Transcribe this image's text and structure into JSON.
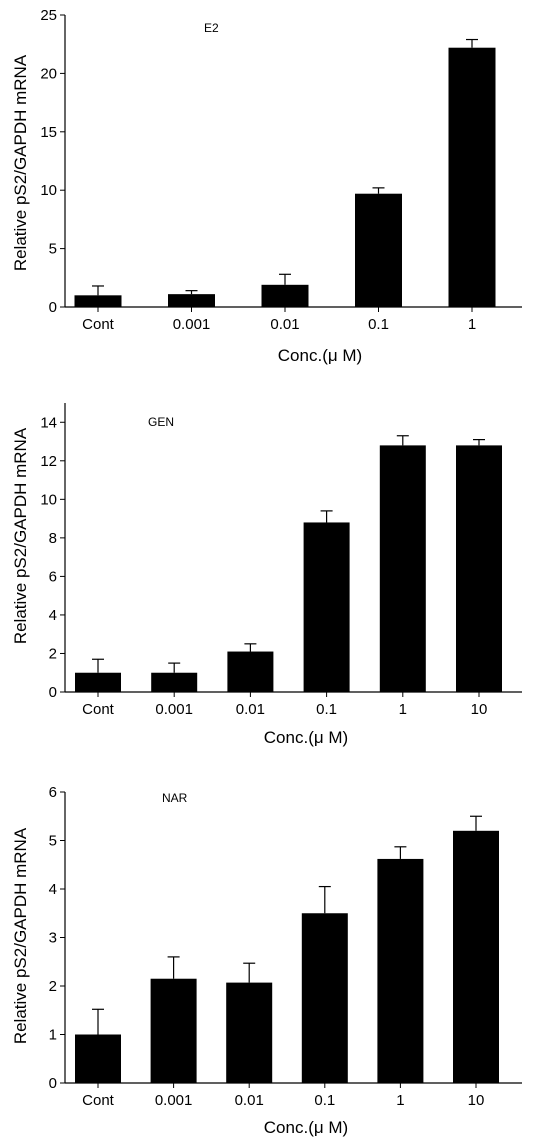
{
  "chart_data": [
    {
      "type": "bar",
      "title": "E2",
      "xlabel": "Conc.(μ M)",
      "ylabel": "Relative pS2/GAPDH mRNA",
      "categories": [
        "Cont",
        "0.001",
        "0.01",
        "0.1",
        "1"
      ],
      "values": [
        1.0,
        1.1,
        1.9,
        9.7,
        22.2
      ],
      "errors": [
        0.8,
        0.3,
        0.9,
        0.5,
        0.7
      ],
      "ylim": [
        0,
        25
      ],
      "yticks": [
        0,
        5,
        10,
        15,
        20,
        25
      ],
      "bar_color": "#000000",
      "grid": false
    },
    {
      "type": "bar",
      "title": "GEN",
      "xlabel": "Conc.(μ M)",
      "ylabel": "Relative pS2/GAPDH mRNA",
      "categories": [
        "Cont",
        "0.001",
        "0.01",
        "0.1",
        "1",
        "10"
      ],
      "values": [
        1.0,
        1.0,
        2.1,
        8.8,
        12.8,
        12.8
      ],
      "errors": [
        0.7,
        0.5,
        0.4,
        0.6,
        0.5,
        0.3
      ],
      "ylim": [
        0,
        15
      ],
      "yticks": [
        0,
        2,
        4,
        6,
        8,
        10,
        12,
        14
      ],
      "bar_color": "#000000",
      "grid": false
    },
    {
      "type": "bar",
      "title": "NAR",
      "xlabel": "Conc.(μ M)",
      "ylabel": "Relative pS2/GAPDH mRNA",
      "categories": [
        "Cont",
        "0.001",
        "0.01",
        "0.1",
        "1",
        "10"
      ],
      "values": [
        1.0,
        2.15,
        2.07,
        3.5,
        4.62,
        5.2
      ],
      "errors": [
        0.52,
        0.45,
        0.4,
        0.55,
        0.25,
        0.3
      ],
      "ylim": [
        0,
        6
      ],
      "yticks": [
        0,
        1,
        2,
        3,
        4,
        5,
        6
      ],
      "bar_color": "#000000",
      "grid": false
    }
  ]
}
